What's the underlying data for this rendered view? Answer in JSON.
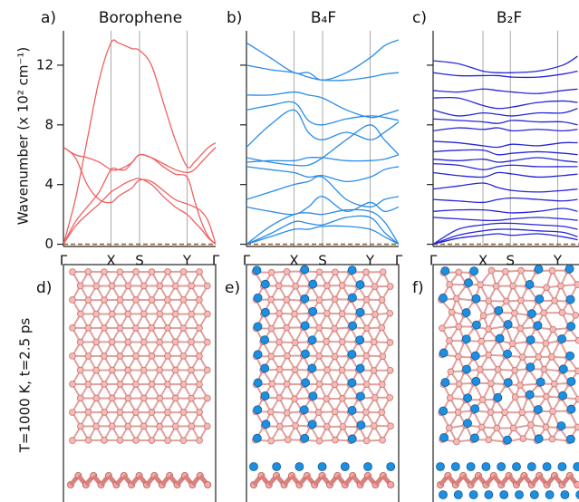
{
  "chart_data": [
    {
      "type": "line",
      "panel": "a)",
      "title": "Borophene",
      "y_label": "Wavenumber (x 10² cm⁻¹)",
      "x": [
        0,
        0.25,
        0.5,
        0.75,
        1,
        1.15,
        1.3,
        1.45,
        1.6,
        1.85,
        2.1,
        2.35,
        2.6,
        2.75,
        2.9,
        3.05,
        3.2
      ],
      "xlim": [
        0,
        3.2
      ],
      "xticks": [
        {
          "value": 0,
          "label": "Γ"
        },
        {
          "value": 1,
          "label": "X"
        },
        {
          "value": 1.6,
          "label": "S"
        },
        {
          "value": 2.6,
          "label": "Y"
        },
        {
          "value": 3.2,
          "label": "Γ"
        }
      ],
      "ylim": [
        -0.15,
        14
      ],
      "yticks": [
        0,
        4,
        8,
        12
      ],
      "ytick_labels": true,
      "grid": true,
      "hline": 0,
      "hline_color": "#8b5a2b",
      "series": [
        {
          "color": "#f06060",
          "values": [
            0,
            3,
            7,
            11,
            13.5,
            13.5,
            13.3,
            13.1,
            13,
            12,
            9.5,
            7,
            5.2,
            5.5,
            6,
            6.5,
            6.8
          ]
        },
        {
          "color": "#f06060",
          "values": [
            0,
            1.5,
            2.5,
            3.5,
            5,
            5,
            5,
            5.5,
            6,
            5.8,
            5.2,
            4.7,
            4.5,
            3,
            1.5,
            0.5,
            0
          ]
        },
        {
          "color": "#f06060",
          "values": [
            0,
            1.2,
            2,
            2.7,
            3.5,
            3.8,
            4.1,
            4.3,
            4.4,
            4,
            3.2,
            2.5,
            2,
            1.5,
            1,
            0.4,
            0
          ]
        },
        {
          "color": "#f06060",
          "values": [
            6.5,
            6,
            5.8,
            5.5,
            5,
            5,
            5.2,
            5.5,
            6,
            5.8,
            5.4,
            5,
            4.8,
            5,
            5.5,
            6,
            6.5
          ]
        },
        {
          "color": "#f06060",
          "values": [
            6.5,
            5.8,
            4,
            3,
            2.8,
            3.2,
            3.5,
            3.8,
            4.3,
            4.2,
            3.6,
            3,
            2.7,
            2.5,
            2.2,
            1.5,
            0
          ]
        }
      ]
    },
    {
      "type": "line",
      "panel": "b)",
      "title": "B₄F",
      "x": [
        0,
        0.5,
        1,
        1.3,
        1.6,
        2.1,
        2.6,
        2.9,
        3.2
      ],
      "xlim": [
        0,
        3.2
      ],
      "xticks": [
        {
          "value": 0,
          "label": "Γ"
        },
        {
          "value": 1,
          "label": "X"
        },
        {
          "value": 1.6,
          "label": "S"
        },
        {
          "value": 2.6,
          "label": "Y"
        },
        {
          "value": 3.2,
          "label": "Γ"
        }
      ],
      "ylim": [
        -0.15,
        14
      ],
      "yticks": [
        0,
        4,
        8,
        12
      ],
      "ytick_labels": false,
      "grid": true,
      "hline": 0,
      "hline_color": "#8b5a2b",
      "series": [
        {
          "color": "#2a8ce8",
          "values": [
            13.5,
            12.5,
            11.5,
            11.5,
            11,
            11.5,
            12.5,
            13.3,
            13.7
          ]
        },
        {
          "color": "#2a8ce8",
          "values": [
            12,
            11.7,
            11.5,
            11.2,
            11,
            11,
            11.2,
            11.4,
            11.5
          ]
        },
        {
          "color": "#2a8ce8",
          "values": [
            10,
            10,
            10.2,
            10,
            9.8,
            9,
            8.5,
            8.7,
            9
          ]
        },
        {
          "color": "#2a8ce8",
          "values": [
            9,
            9.3,
            9.5,
            8.3,
            8,
            8.4,
            8.6,
            8.5,
            8.3
          ]
        },
        {
          "color": "#2a8ce8",
          "values": [
            6.5,
            8,
            9,
            7.5,
            7,
            7.5,
            7,
            7.5,
            8.2
          ]
        },
        {
          "color": "#2a8ce8",
          "values": [
            5.8,
            5.5,
            5.3,
            5.3,
            5.8,
            7,
            8,
            7,
            6
          ]
        },
        {
          "color": "#2a8ce8",
          "values": [
            5.5,
            5.6,
            5.6,
            5.8,
            5.8,
            5.6,
            5.6,
            5.7,
            6
          ]
        },
        {
          "color": "#2a8ce8",
          "values": [
            5.2,
            5,
            4.8,
            4.5,
            4.6,
            4.2,
            4.5,
            5,
            5.2
          ]
        },
        {
          "color": "#2a8ce8",
          "values": [
            3,
            3.5,
            4,
            4.2,
            4.5,
            3,
            2.5,
            3,
            3.2
          ]
        },
        {
          "color": "#2a8ce8",
          "values": [
            2.5,
            2.2,
            2,
            2.5,
            3.2,
            2.2,
            2.8,
            2.2,
            2.5
          ]
        },
        {
          "color": "#2a8ce8",
          "values": [
            0,
            1.2,
            2,
            2.1,
            2,
            2.3,
            2.2,
            1.5,
            0
          ]
        },
        {
          "color": "#2a8ce8",
          "values": [
            0,
            0.7,
            1.5,
            1.4,
            1.3,
            1.8,
            1.8,
            0.8,
            0
          ]
        },
        {
          "color": "#2a8ce8",
          "values": [
            0,
            0.5,
            1,
            1,
            1.2,
            1.2,
            1,
            0.5,
            0
          ]
        }
      ]
    },
    {
      "type": "line",
      "panel": "c)",
      "title": "B₂F",
      "x": [
        0,
        0.5,
        1,
        1.3,
        1.6,
        2.1,
        2.6,
        2.9
      ],
      "xlim": [
        0,
        2.95
      ],
      "xticks": [
        {
          "value": 0,
          "label": "Γ"
        },
        {
          "value": 1,
          "label": "X"
        },
        {
          "value": 1.55,
          "label": "S"
        },
        {
          "value": 2.5,
          "label": "Y"
        }
      ],
      "ylim": [
        -0.15,
        14
      ],
      "yticks": [
        0,
        4,
        8,
        12
      ],
      "ytick_labels": false,
      "grid": true,
      "hline": 0,
      "hline_color": "#8b5a2b",
      "series": [
        {
          "color": "#2626d9",
          "values": [
            12.3,
            12.1,
            11.6,
            11.5,
            11.5,
            11.6,
            12,
            12.6
          ]
        },
        {
          "color": "#2626d9",
          "values": [
            11.5,
            11.3,
            11.3,
            11.3,
            11.2,
            11.2,
            11.4,
            11.6
          ]
        },
        {
          "color": "#2626d9",
          "values": [
            10.3,
            10.2,
            10.4,
            10.3,
            10.2,
            10.1,
            10.3,
            10.4
          ]
        },
        {
          "color": "#2626d9",
          "values": [
            9.8,
            9.8,
            9.3,
            9.1,
            9.2,
            9.5,
            9.6,
            9.5
          ]
        },
        {
          "color": "#2626d9",
          "values": [
            9,
            8.6,
            8.8,
            8.7,
            8.6,
            8.8,
            8.8,
            9.1
          ]
        },
        {
          "color": "#2626d9",
          "values": [
            8.4,
            8.3,
            8.2,
            8.1,
            8.3,
            8.2,
            8.2,
            8
          ]
        },
        {
          "color": "#2626d9",
          "values": [
            7.6,
            7.8,
            7.7,
            7.8,
            7.6,
            7.7,
            7.6,
            7.7
          ]
        },
        {
          "color": "#2626d9",
          "values": [
            6.9,
            6.8,
            6.6,
            6.5,
            6.7,
            6.6,
            6.8,
            6.8
          ]
        },
        {
          "color": "#2626d9",
          "values": [
            6.2,
            6.3,
            6.3,
            6,
            6.1,
            6.2,
            6.1,
            6
          ]
        },
        {
          "color": "#2626d9",
          "values": [
            5.7,
            5.6,
            5.7,
            5.5,
            5.6,
            5.8,
            5.6,
            5.5
          ]
        },
        {
          "color": "#2626d9",
          "values": [
            5.4,
            5.3,
            5,
            5.2,
            5.3,
            5.2,
            5.2,
            5.2
          ]
        },
        {
          "color": "#2626d9",
          "values": [
            4.8,
            4.6,
            4.5,
            4.8,
            4.7,
            4.5,
            4.6,
            4.7
          ]
        },
        {
          "color": "#2626d9",
          "values": [
            3.7,
            3.9,
            4.1,
            3.8,
            3.6,
            3.5,
            3.6,
            3.7
          ]
        },
        {
          "color": "#2626d9",
          "values": [
            3,
            2.9,
            2.8,
            3,
            3.1,
            3,
            2.9,
            3
          ]
        },
        {
          "color": "#2626d9",
          "values": [
            2.2,
            2.3,
            2.3,
            2.2,
            2.1,
            2.2,
            2.4,
            2.2
          ]
        },
        {
          "color": "#2626d9",
          "values": [
            1.8,
            1.7,
            1.6,
            1.6,
            1.7,
            1.8,
            1.7,
            1.6
          ]
        },
        {
          "color": "#2626d9",
          "values": [
            0,
            1,
            1.3,
            1.4,
            1.4,
            1.3,
            1.2,
            1
          ]
        },
        {
          "color": "#2626d9",
          "values": [
            0,
            0.6,
            0.9,
            1,
            1,
            0.9,
            0.8,
            0.5
          ]
        },
        {
          "color": "#2626d9",
          "values": [
            0,
            0.4,
            0.6,
            0.7,
            0.6,
            0.7,
            0.5,
            0.3
          ]
        }
      ]
    }
  ],
  "structures": {
    "side_label": "T=1000 K, t=2.5 ps",
    "panels": [
      "d)",
      "e)",
      "f)"
    ]
  }
}
